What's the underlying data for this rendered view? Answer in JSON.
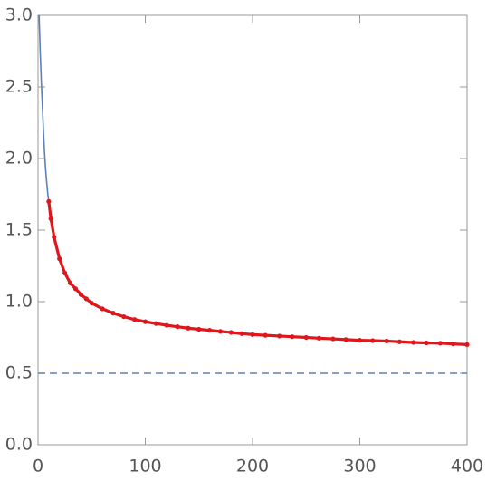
{
  "chart_data": {
    "type": "line",
    "series": [
      {
        "style": "line",
        "color": "#5e81b5",
        "x": [
          1,
          2,
          3,
          4,
          5,
          6,
          7,
          8,
          9,
          10
        ],
        "values": [
          3.0,
          2.75,
          2.55,
          2.38,
          2.2,
          2.05,
          1.93,
          1.84,
          1.76,
          1.7
        ]
      },
      {
        "style": "points",
        "color": "#e0161b",
        "x": [
          10,
          12,
          15,
          20,
          25,
          30,
          35,
          40,
          45,
          50,
          60,
          70,
          80,
          90,
          100,
          110,
          120,
          130,
          140,
          150,
          160,
          170,
          180,
          190,
          200,
          212,
          225,
          237,
          250,
          262,
          275,
          287,
          300,
          312,
          325,
          337,
          350,
          362,
          375,
          387,
          400
        ],
        "values": [
          1.7,
          1.58,
          1.45,
          1.3,
          1.2,
          1.13,
          1.09,
          1.05,
          1.02,
          0.99,
          0.95,
          0.92,
          0.895,
          0.875,
          0.86,
          0.847,
          0.835,
          0.825,
          0.815,
          0.807,
          0.8,
          0.792,
          0.785,
          0.777,
          0.77,
          0.765,
          0.76,
          0.755,
          0.75,
          0.745,
          0.74,
          0.735,
          0.73,
          0.728,
          0.725,
          0.72,
          0.715,
          0.712,
          0.71,
          0.705,
          0.7
        ]
      }
    ],
    "reference_line": {
      "value": 0.5,
      "color": "#5e81b5"
    },
    "xlim": [
      0,
      400
    ],
    "ylim": [
      0,
      3.0
    ],
    "xticks": [
      0,
      100,
      200,
      300,
      400
    ],
    "yticks": [
      {
        "value": 0,
        "label": "0.0"
      },
      0.5,
      {
        "value": 1,
        "label": "1.0"
      },
      1.5,
      {
        "value": 2,
        "label": "2.0"
      },
      2.5,
      {
        "value": 3,
        "label": "3.0"
      }
    ]
  }
}
